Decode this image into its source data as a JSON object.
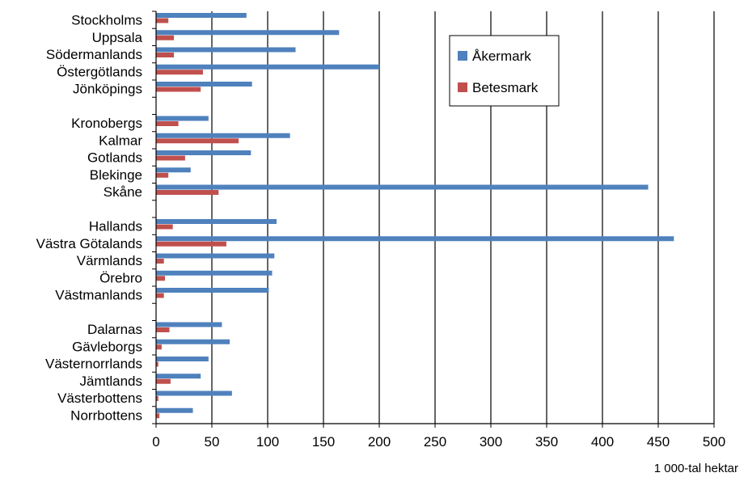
{
  "chart_data": {
    "type": "bar",
    "orientation": "horizontal",
    "xlabel": "1 000-tal hektar",
    "xlim": [
      0,
      500
    ],
    "xticks": [
      0,
      50,
      100,
      150,
      200,
      250,
      300,
      350,
      400,
      450,
      500
    ],
    "grid": "vertical",
    "legend_position": "top-right",
    "groups": [
      [
        "Stockholms",
        "Uppsala",
        "Södermanlands",
        "Östergötlands",
        "Jönköpings"
      ],
      [
        "Kronobergs",
        "Kalmar",
        "Gotlands",
        "Blekinge",
        "Skåne"
      ],
      [
        "Hallands",
        "Västra Götalands",
        "Värmlands",
        "Örebro",
        "Västmanlands"
      ],
      [
        "Dalarnas",
        "Gävleborgs",
        "Västernorrlands",
        "Jämtlands",
        "Västerbottens",
        "Norrbottens"
      ]
    ],
    "categories": [
      "Stockholms",
      "Uppsala",
      "Södermanlands",
      "Östergötlands",
      "Jönköpings",
      "Kronobergs",
      "Kalmar",
      "Gotlands",
      "Blekinge",
      "Skåne",
      "Hallands",
      "Västra Götalands",
      "Värmlands",
      "Örebro",
      "Västmanlands",
      "Dalarnas",
      "Gävleborgs",
      "Västernorrlands",
      "Jämtlands",
      "Västerbottens",
      "Norrbottens"
    ],
    "series": [
      {
        "name": "Åkermark",
        "color": "#4f81bd",
        "values": [
          81,
          164,
          125,
          200,
          86,
          47,
          120,
          85,
          31,
          441,
          108,
          464,
          106,
          104,
          101,
          59,
          66,
          47,
          40,
          68,
          33
        ]
      },
      {
        "name": "Betesmark",
        "color": "#c0504d",
        "values": [
          11,
          16,
          16,
          42,
          40,
          20,
          74,
          26,
          11,
          56,
          15,
          63,
          7,
          8,
          7,
          12,
          5,
          2,
          13,
          2,
          3
        ]
      }
    ]
  }
}
